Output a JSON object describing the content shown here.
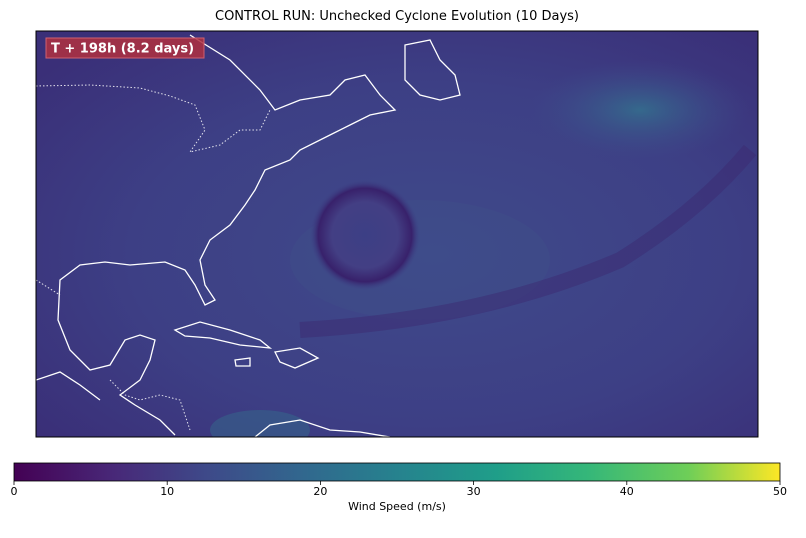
{
  "title": "CONTROL RUN: Unchecked Cyclone Evolution (10 Days)",
  "annotation": "T + 198h (8.2 days)",
  "colorbar": {
    "label": "Wind Speed (m/s)",
    "lim": [
      0,
      50
    ],
    "ticks": [
      0,
      10,
      20,
      30,
      40,
      50
    ],
    "colormap": "viridis"
  }
}
